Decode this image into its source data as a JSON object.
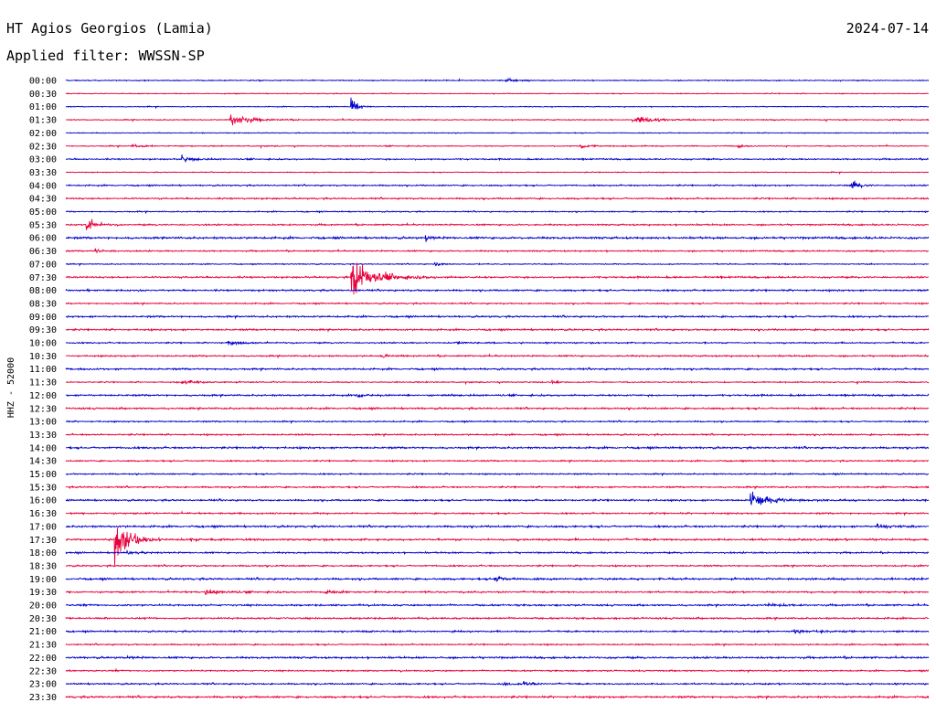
{
  "header": {
    "station": "HT Agios Georgios (Lamia)",
    "date": "2024-07-14",
    "filter": "Applied filter: WWSSN-SP"
  },
  "chart_data": {
    "type": "line",
    "title": "HT Agios Georgios (Lamia)",
    "subtitle": "Applied filter: WWSSN-SP",
    "ylabel": "HHZ - 52000",
    "xlabel": "",
    "colors": {
      "even_rows": "#0000cc",
      "odd_rows": "#e8003c"
    },
    "rows": [
      {
        "label": "00:00",
        "noise": 0.6
      },
      {
        "label": "00:30",
        "noise": 0.5
      },
      {
        "label": "01:00",
        "noise": 0.5
      },
      {
        "label": "01:30",
        "noise": 0.6
      },
      {
        "label": "02:00",
        "noise": 0.5
      },
      {
        "label": "02:30",
        "noise": 0.6
      },
      {
        "label": "03:00",
        "noise": 0.8
      },
      {
        "label": "03:30",
        "noise": 0.5
      },
      {
        "label": "04:00",
        "noise": 0.8
      },
      {
        "label": "04:30",
        "noise": 0.9
      },
      {
        "label": "05:00",
        "noise": 0.7
      },
      {
        "label": "05:30",
        "noise": 0.9
      },
      {
        "label": "06:00",
        "noise": 1.2
      },
      {
        "label": "06:30",
        "noise": 0.8
      },
      {
        "label": "07:00",
        "noise": 0.6
      },
      {
        "label": "07:30",
        "noise": 1.0
      },
      {
        "label": "08:00",
        "noise": 1.0
      },
      {
        "label": "08:30",
        "noise": 0.8
      },
      {
        "label": "09:00",
        "noise": 1.0
      },
      {
        "label": "09:30",
        "noise": 1.0
      },
      {
        "label": "10:00",
        "noise": 0.8
      },
      {
        "label": "10:30",
        "noise": 0.9
      },
      {
        "label": "11:00",
        "noise": 1.0
      },
      {
        "label": "11:30",
        "noise": 0.7
      },
      {
        "label": "12:00",
        "noise": 1.0
      },
      {
        "label": "12:30",
        "noise": 1.0
      },
      {
        "label": "13:00",
        "noise": 0.8
      },
      {
        "label": "13:30",
        "noise": 0.9
      },
      {
        "label": "14:00",
        "noise": 1.1
      },
      {
        "label": "14:30",
        "noise": 0.8
      },
      {
        "label": "15:00",
        "noise": 0.8
      },
      {
        "label": "15:30",
        "noise": 0.9
      },
      {
        "label": "16:00",
        "noise": 1.0
      },
      {
        "label": "16:30",
        "noise": 0.9
      },
      {
        "label": "17:00",
        "noise": 1.1
      },
      {
        "label": "17:30",
        "noise": 1.1
      },
      {
        "label": "18:00",
        "noise": 0.9
      },
      {
        "label": "18:30",
        "noise": 0.9
      },
      {
        "label": "19:00",
        "noise": 1.1
      },
      {
        "label": "19:30",
        "noise": 0.9
      },
      {
        "label": "20:00",
        "noise": 1.0
      },
      {
        "label": "20:30",
        "noise": 1.0
      },
      {
        "label": "21:00",
        "noise": 0.9
      },
      {
        "label": "21:30",
        "noise": 0.8
      },
      {
        "label": "22:00",
        "noise": 1.1
      },
      {
        "label": "22:30",
        "noise": 0.8
      },
      {
        "label": "23:00",
        "noise": 0.9
      },
      {
        "label": "23:30",
        "noise": 1.1
      }
    ],
    "events": [
      {
        "row": 0,
        "minute": 15.3,
        "amp": 3,
        "dur": 0.9
      },
      {
        "row": 2,
        "minute": 9.9,
        "amp": 16,
        "dur": 0.4
      },
      {
        "row": 3,
        "minute": 5.7,
        "amp": 14,
        "dur": 1.2
      },
      {
        "row": 3,
        "minute": 19.7,
        "amp": 5,
        "dur": 2.0
      },
      {
        "row": 5,
        "minute": 2.3,
        "amp": 3,
        "dur": 0.7
      },
      {
        "row": 5,
        "minute": 17.8,
        "amp": 3,
        "dur": 1.0
      },
      {
        "row": 5,
        "minute": 23.3,
        "amp": 3,
        "dur": 0.5
      },
      {
        "row": 6,
        "minute": 4.0,
        "amp": 5,
        "dur": 0.7
      },
      {
        "row": 8,
        "minute": 27.3,
        "amp": 10,
        "dur": 0.5
      },
      {
        "row": 11,
        "minute": 0.7,
        "amp": 18,
        "dur": 0.5
      },
      {
        "row": 12,
        "minute": 12.5,
        "amp": 6,
        "dur": 0.4
      },
      {
        "row": 13,
        "minute": 1.0,
        "amp": 3,
        "dur": 0.8
      },
      {
        "row": 14,
        "minute": 12.8,
        "amp": 3,
        "dur": 0.6
      },
      {
        "row": 15,
        "minute": 9.9,
        "amp": 32,
        "dur": 1.6
      },
      {
        "row": 20,
        "minute": 5.6,
        "amp": 3,
        "dur": 0.8
      },
      {
        "row": 20,
        "minute": 13.5,
        "amp": 3,
        "dur": 0.5
      },
      {
        "row": 21,
        "minute": 11.0,
        "amp": 3,
        "dur": 0.5
      },
      {
        "row": 23,
        "minute": 4.0,
        "amp": 3,
        "dur": 1.5
      },
      {
        "row": 23,
        "minute": 16.9,
        "amp": 3,
        "dur": 0.5
      },
      {
        "row": 24,
        "minute": 10.1,
        "amp": 4,
        "dur": 0.5
      },
      {
        "row": 32,
        "minute": 23.8,
        "amp": 14,
        "dur": 1.3
      },
      {
        "row": 34,
        "minute": 28.2,
        "amp": 4,
        "dur": 0.8
      },
      {
        "row": 35,
        "minute": 1.7,
        "amp": 45,
        "dur": 0.9
      },
      {
        "row": 35,
        "minute": 4.3,
        "amp": 4,
        "dur": 0.6
      },
      {
        "row": 36,
        "minute": 2.1,
        "amp": 3,
        "dur": 1.0
      },
      {
        "row": 38,
        "minute": 14.9,
        "amp": 3,
        "dur": 0.6
      },
      {
        "row": 39,
        "minute": 4.8,
        "amp": 4,
        "dur": 1.5
      },
      {
        "row": 39,
        "minute": 9.0,
        "amp": 3,
        "dur": 0.8
      },
      {
        "row": 40,
        "minute": 24.3,
        "amp": 4,
        "dur": 1.0
      },
      {
        "row": 42,
        "minute": 10.3,
        "amp": 2,
        "dur": 0.5
      },
      {
        "row": 42,
        "minute": 13.4,
        "amp": 2,
        "dur": 0.4
      },
      {
        "row": 42,
        "minute": 25.3,
        "amp": 3,
        "dur": 1.5
      },
      {
        "row": 44,
        "minute": 2.1,
        "amp": 3,
        "dur": 0.4
      },
      {
        "row": 46,
        "minute": 15.2,
        "amp": 3,
        "dur": 0.5
      },
      {
        "row": 46,
        "minute": 15.9,
        "amp": 7,
        "dur": 0.4
      }
    ]
  }
}
